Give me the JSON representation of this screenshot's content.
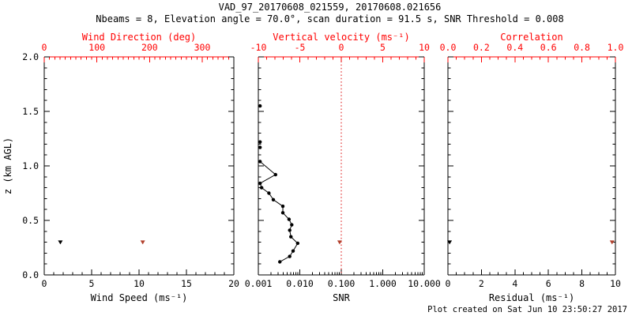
{
  "title": "VAD_97_20170608_021559, 20170608.021656",
  "subtitle": "Nbeams = 8, Elevation angle = 70.0°, scan duration = 91.5 s, SNR Threshold = 0.008",
  "footer": "Plot created on Sat Jun 10 23:50:27 2017",
  "colors": {
    "axis": "#000000",
    "secondary_axis": "#ff0000",
    "data_primary": "#000000",
    "data_secondary": "#b2402c",
    "ref_line": "#dd0000",
    "background": "#ffffff"
  },
  "chart_data": [
    {
      "name": "wind",
      "type": "scatter",
      "y_axis": {
        "label": "z (km AGL)",
        "range": [
          0,
          2
        ],
        "ticks": [
          0,
          0.5,
          1,
          1.5,
          2
        ],
        "tick_labels": [
          "0.0",
          "0.5",
          "1.0",
          "1.5",
          "2.0"
        ],
        "minor_step": 0.1
      },
      "bottom_axis": {
        "label": "Wind Speed (ms⁻¹)",
        "range": [
          0,
          20
        ],
        "ticks": [
          0,
          5,
          10,
          15,
          20
        ],
        "tick_labels": [
          "0",
          "5",
          "10",
          "15",
          "20"
        ],
        "minor_step": 1
      },
      "top_axis": {
        "label": "Wind Direction (deg)",
        "range": [
          0,
          360
        ],
        "ticks": [
          0,
          100,
          200,
          300
        ],
        "tick_labels": [
          "0",
          "100",
          "200",
          "300"
        ],
        "minor_step": 10
      },
      "series": [
        {
          "name": "wind-speed",
          "axis": "bottom",
          "color_key": "data_primary",
          "marker": "triangle-down",
          "connect": false,
          "points": [
            {
              "x": 1.7,
              "z": 0.3
            }
          ]
        },
        {
          "name": "wind-direction",
          "axis": "top",
          "color_key": "data_secondary",
          "marker": "triangle-down",
          "connect": false,
          "points": [
            {
              "x": 187,
              "z": 0.3
            }
          ]
        }
      ]
    },
    {
      "name": "snr",
      "type": "scatter",
      "y_axis": {
        "label": null,
        "range": [
          0,
          2
        ],
        "ticks": [
          0,
          0.5,
          1,
          1.5,
          2
        ],
        "tick_labels": null,
        "minor_step": 0.1
      },
      "bottom_axis": {
        "label": "SNR",
        "scale": "log",
        "range": [
          0.001,
          10
        ],
        "ticks": [
          0.001,
          0.01,
          0.1,
          1,
          10
        ],
        "tick_labels": [
          "0.001",
          "0.010",
          "0.100",
          "1.000",
          "10.000"
        ]
      },
      "top_axis": {
        "label": "Vertical velocity (ms⁻¹)",
        "range": [
          -10,
          10
        ],
        "ticks": [
          -10,
          -5,
          0,
          5,
          10
        ],
        "tick_labels": [
          "-10",
          "-5",
          "0",
          "5",
          "10"
        ],
        "minor_step": 1
      },
      "ref_line": {
        "axis": "top",
        "value": 0,
        "style": "dotted"
      },
      "series": [
        {
          "name": "snr-isolated",
          "axis": "bottom",
          "color_key": "data_primary",
          "marker": "dot",
          "connect": false,
          "points": [
            {
              "x": 0.0011,
              "z": 1.55
            },
            {
              "x": 0.0011,
              "z": 1.22
            },
            {
              "x": 0.0011,
              "z": 1.17
            }
          ]
        },
        {
          "name": "snr-profile",
          "axis": "bottom",
          "color_key": "data_primary",
          "marker": "dot",
          "connect": true,
          "points": [
            {
              "x": 0.0011,
              "z": 1.04
            },
            {
              "x": 0.0026,
              "z": 0.92
            },
            {
              "x": 0.0011,
              "z": 0.84
            },
            {
              "x": 0.0012,
              "z": 0.8
            },
            {
              "x": 0.0018,
              "z": 0.75
            },
            {
              "x": 0.0023,
              "z": 0.69
            },
            {
              "x": 0.0039,
              "z": 0.63
            },
            {
              "x": 0.0039,
              "z": 0.57
            },
            {
              "x": 0.0055,
              "z": 0.51
            },
            {
              "x": 0.0064,
              "z": 0.46
            },
            {
              "x": 0.0057,
              "z": 0.41
            },
            {
              "x": 0.0061,
              "z": 0.35
            },
            {
              "x": 0.0089,
              "z": 0.29
            },
            {
              "x": 0.0069,
              "z": 0.22
            },
            {
              "x": 0.0057,
              "z": 0.17
            },
            {
              "x": 0.0033,
              "z": 0.12
            }
          ]
        },
        {
          "name": "vertical-velocity",
          "axis": "top",
          "color_key": "data_secondary",
          "marker": "triangle-down",
          "connect": false,
          "points": [
            {
              "x": -0.2,
              "z": 0.3
            }
          ]
        }
      ]
    },
    {
      "name": "residual",
      "type": "scatter",
      "y_axis": {
        "label": null,
        "range": [
          0,
          2
        ],
        "ticks": [
          0,
          0.5,
          1,
          1.5,
          2
        ],
        "tick_labels": null,
        "minor_step": 0.1
      },
      "bottom_axis": {
        "label": "Residual (ms⁻¹)",
        "range": [
          0,
          10
        ],
        "ticks": [
          0,
          2,
          4,
          6,
          8,
          10
        ],
        "tick_labels": [
          "0",
          "2",
          "4",
          "6",
          "8",
          "10"
        ],
        "minor_step": 0.5
      },
      "top_axis": {
        "label": "Correlation",
        "range": [
          0,
          1
        ],
        "ticks": [
          0,
          0.2,
          0.4,
          0.6,
          0.8,
          1
        ],
        "tick_labels": [
          "0.0",
          "0.2",
          "0.4",
          "0.6",
          "0.8",
          "1.0"
        ],
        "minor_step": 0.05
      },
      "series": [
        {
          "name": "residual",
          "axis": "bottom",
          "color_key": "data_primary",
          "marker": "triangle-down",
          "connect": false,
          "points": [
            {
              "x": 0.1,
              "z": 0.3
            }
          ]
        },
        {
          "name": "correlation",
          "axis": "top",
          "color_key": "data_secondary",
          "marker": "triangle-down",
          "connect": false,
          "points": [
            {
              "x": 0.98,
              "z": 0.3
            }
          ]
        }
      ]
    }
  ]
}
